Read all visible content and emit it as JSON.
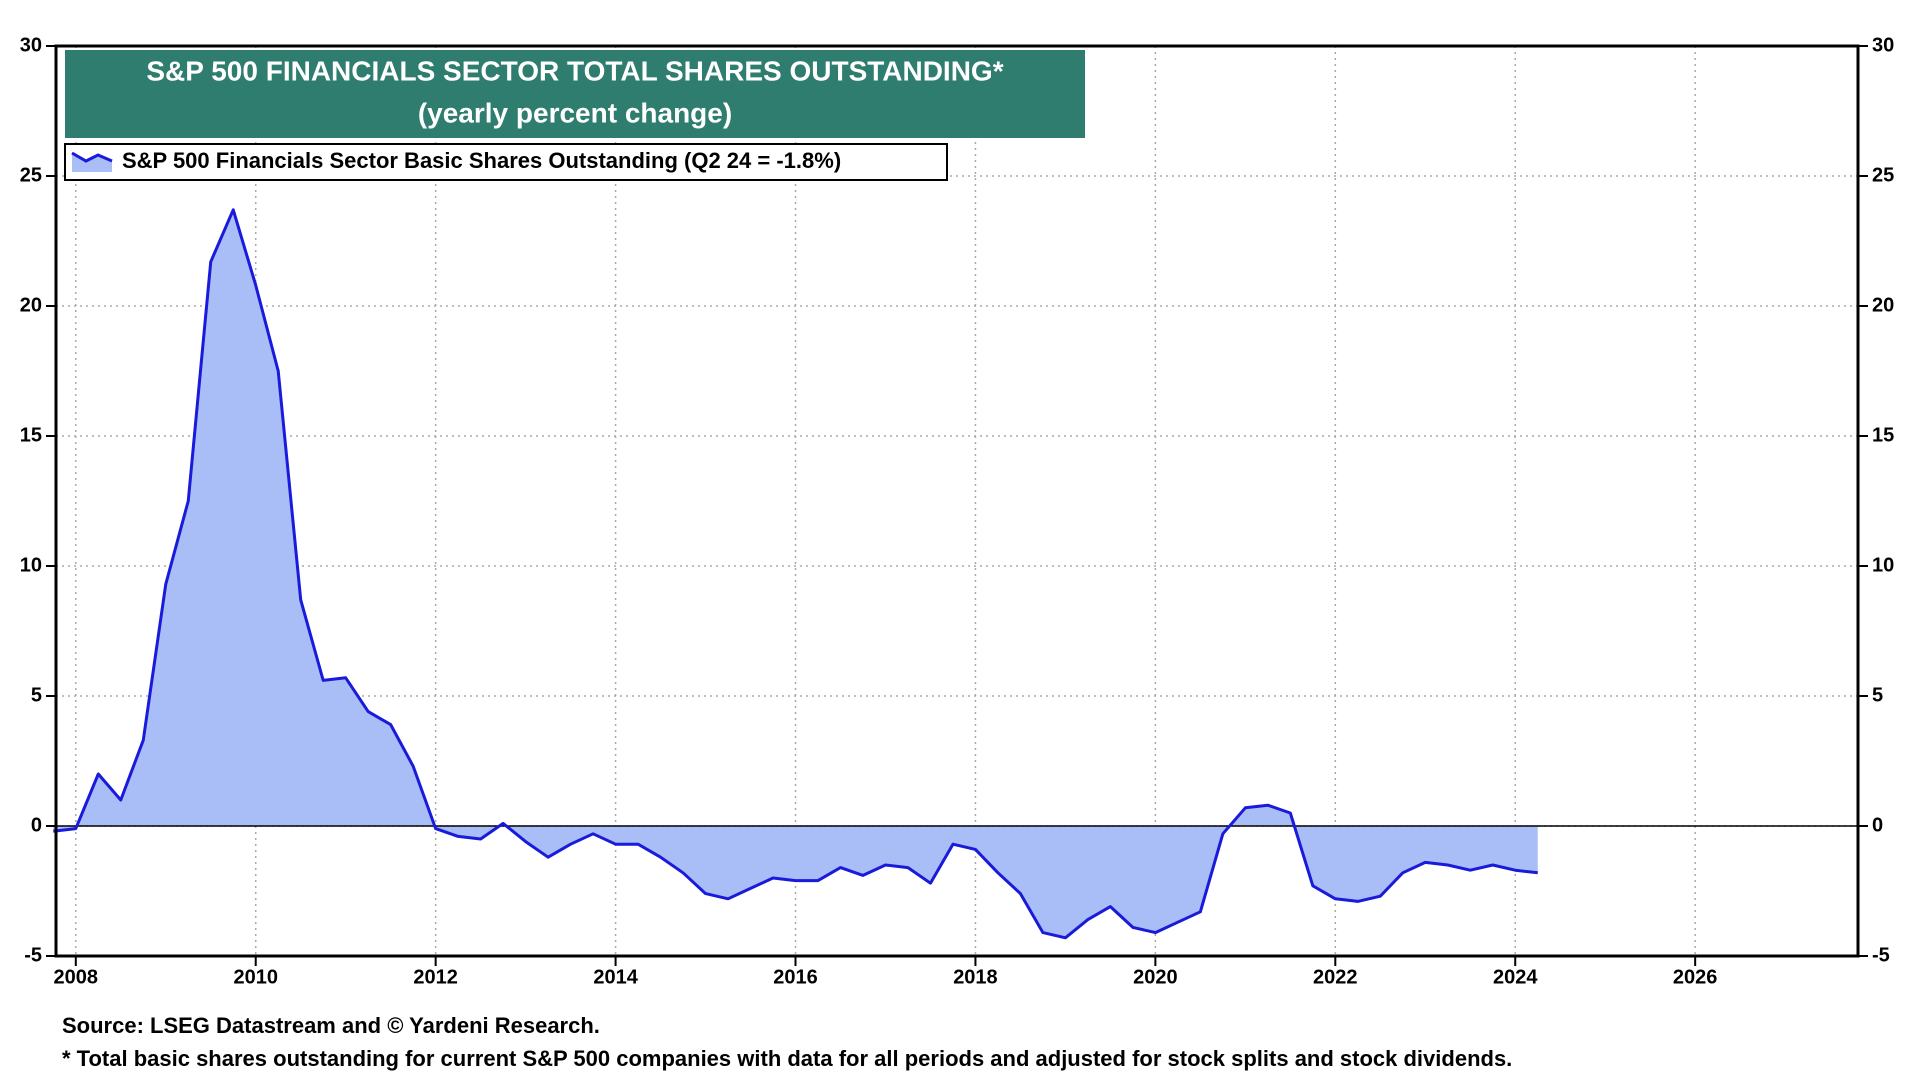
{
  "chart_data": {
    "type": "area",
    "title": "S&P 500 FINANCIALS SECTOR TOTAL SHARES OUTSTANDING*",
    "subtitle": "(yearly percent change)",
    "x": [
      2007.75,
      2008.0,
      2008.25,
      2008.5,
      2008.75,
      2009.0,
      2009.25,
      2009.5,
      2009.75,
      2010.0,
      2010.25,
      2010.5,
      2010.75,
      2011.0,
      2011.25,
      2011.5,
      2011.75,
      2012.0,
      2012.25,
      2012.5,
      2012.75,
      2013.0,
      2013.25,
      2013.5,
      2013.75,
      2014.0,
      2014.25,
      2014.5,
      2014.75,
      2015.0,
      2015.25,
      2015.5,
      2015.75,
      2016.0,
      2016.25,
      2016.5,
      2016.75,
      2017.0,
      2017.25,
      2017.5,
      2017.75,
      2018.0,
      2018.25,
      2018.5,
      2018.75,
      2019.0,
      2019.25,
      2019.5,
      2019.75,
      2020.0,
      2020.25,
      2020.5,
      2020.75,
      2021.0,
      2021.25,
      2021.5,
      2021.75,
      2022.0,
      2022.25,
      2022.5,
      2022.75,
      2023.0,
      2023.25,
      2023.5,
      2023.75,
      2024.0,
      2024.25
    ],
    "series": [
      {
        "name": "S&P 500 Financials Sector Basic Shares Outstanding (Q2 24 = -1.8%)",
        "color": "#1a1adb",
        "fill": "#a9bdf7",
        "values": [
          -0.2,
          -0.1,
          2.0,
          1.0,
          3.3,
          9.3,
          12.5,
          21.7,
          23.7,
          20.8,
          17.5,
          8.7,
          5.6,
          5.7,
          4.4,
          3.9,
          2.3,
          -0.1,
          -0.4,
          -0.5,
          0.1,
          -0.6,
          -1.2,
          -0.7,
          -0.3,
          -0.7,
          -0.7,
          -1.2,
          -1.8,
          -2.6,
          -2.8,
          -2.4,
          -2.0,
          -2.1,
          -2.1,
          -1.6,
          -1.9,
          -1.5,
          -1.6,
          -2.2,
          -0.7,
          -0.9,
          -1.8,
          -2.6,
          -4.1,
          -4.3,
          -3.6,
          -3.1,
          -3.9,
          -4.1,
          -3.7,
          -3.3,
          -0.3,
          0.7,
          0.8,
          0.5,
          -2.3,
          -2.8,
          -2.9,
          -2.7,
          -1.8,
          -1.4,
          -1.5,
          -1.7,
          -1.5,
          -1.7,
          -1.8
        ]
      }
    ],
    "xlim": [
      2007.78,
      2027.81
    ],
    "xticks": [
      2008,
      2010,
      2012,
      2014,
      2016,
      2018,
      2020,
      2022,
      2024,
      2026
    ],
    "ylim": [
      -5,
      30
    ],
    "yticks": [
      -5,
      0,
      5,
      10,
      15,
      20,
      25,
      30
    ],
    "grid": true,
    "source": "Source: LSEG Datastream and © Yardeni Research.",
    "note": "* Total basic shares outstanding for current S&P 500 companies with data for all periods and adjusted for stock splits and stock dividends."
  }
}
